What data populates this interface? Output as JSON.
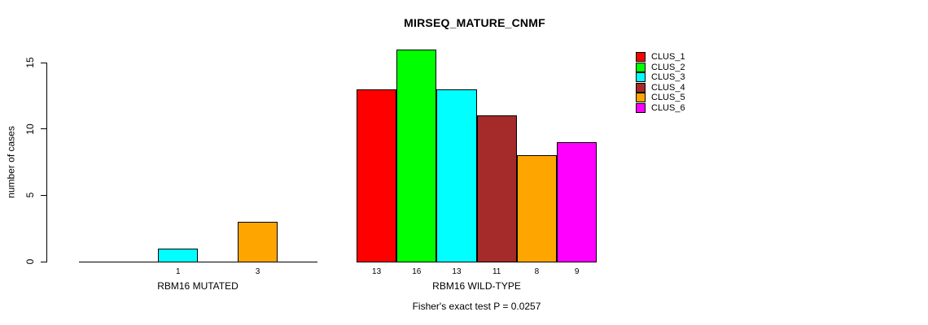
{
  "chart_data": {
    "type": "bar",
    "title": "MIRSEQ_MATURE_CNMF",
    "ylabel": "number of cases",
    "ylim": [
      0,
      15
    ],
    "yticks": [
      0,
      5,
      10,
      15
    ],
    "grid": false,
    "legend_position": "right",
    "legend": [
      {
        "label": "CLUS_1",
        "color": "#FF0000"
      },
      {
        "label": "CLUS_2",
        "color": "#00FF00"
      },
      {
        "label": "CLUS_3",
        "color": "#00FFFF"
      },
      {
        "label": "CLUS_4",
        "color": "#A52A2A"
      },
      {
        "label": "CLUS_5",
        "color": "#FFA500"
      },
      {
        "label": "CLUS_6",
        "color": "#FF00FF"
      }
    ],
    "colors": [
      "#FF0000",
      "#00FF00",
      "#00FFFF",
      "#A52A2A",
      "#FFA500",
      "#FF00FF"
    ],
    "categories": [
      "CLUS_1",
      "CLUS_2",
      "CLUS_3",
      "CLUS_4",
      "CLUS_5",
      "CLUS_6"
    ],
    "groups": [
      {
        "label": "RBM16 MUTATED",
        "values": [
          0,
          0,
          1,
          0,
          3,
          0
        ],
        "bar_labels": [
          "",
          "",
          "1",
          "",
          "3",
          ""
        ]
      },
      {
        "label": "RBM16 WILD-TYPE",
        "values": [
          13,
          16,
          13,
          11,
          8,
          9
        ],
        "bar_labels": [
          "13",
          "16",
          "13",
          "11",
          "8",
          "9"
        ]
      }
    ],
    "annotation": "Fisher's exact test P = 0.0257"
  }
}
